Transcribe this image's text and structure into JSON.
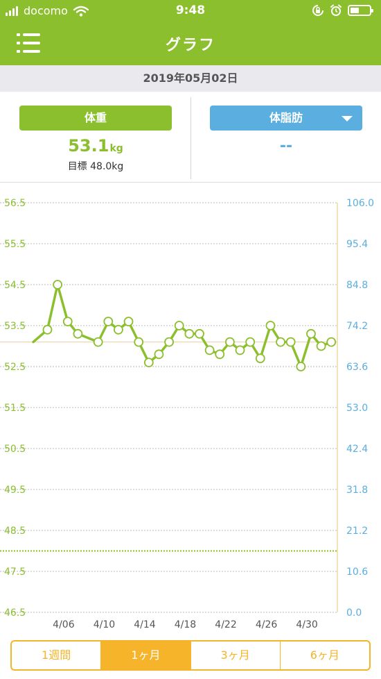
{
  "status_bar": {
    "carrier": "docomo",
    "time": "9:48"
  },
  "nav": {
    "title": "グラフ",
    "menu_icon": "list-menu-icon"
  },
  "date": "2019年05月02日",
  "weight": {
    "label": "体重",
    "value": "53.1",
    "unit": "kg",
    "goal": "目標 48.0kg"
  },
  "body_fat": {
    "label": "体脂肪",
    "value": "--"
  },
  "colors": {
    "green": "#8bbf2e",
    "blue": "#5aaee0",
    "orange": "#f5b429"
  },
  "chart_data": {
    "type": "line",
    "x_ticks": [
      "4/06",
      "4/10",
      "4/14",
      "4/18",
      "4/22",
      "4/26",
      "4/30"
    ],
    "x_tick_days": [
      6,
      10,
      14,
      18,
      22,
      26,
      30
    ],
    "x_range_days": [
      3,
      33
    ],
    "y_left": {
      "min": 46.5,
      "max": 56.5,
      "ticks": [
        "56.5",
        "55.5",
        "54.5",
        "53.5",
        "52.5",
        "51.5",
        "50.5",
        "49.5",
        "48.5",
        "47.5",
        "46.5"
      ]
    },
    "y_right": {
      "ticks": [
        "106.0",
        "95.4",
        "84.8",
        "74.2",
        "63.6",
        "53.0",
        "42.4",
        "31.8",
        "21.2",
        "10.6",
        "0.0"
      ]
    },
    "goal_line": 48.0,
    "reference_line": 53.1,
    "series": [
      {
        "values": [
          {
            "x": 3,
            "y": 53.1
          },
          {
            "x": 4.4,
            "y": 53.4
          },
          {
            "x": 5.4,
            "y": 54.5
          },
          {
            "x": 6.4,
            "y": 53.6
          },
          {
            "x": 7.4,
            "y": 53.3
          },
          {
            "x": 9.4,
            "y": 53.1
          },
          {
            "x": 10.4,
            "y": 53.6
          },
          {
            "x": 11.4,
            "y": 53.4
          },
          {
            "x": 12.4,
            "y": 53.6
          },
          {
            "x": 13.4,
            "y": 53.1
          },
          {
            "x": 14.4,
            "y": 52.6
          },
          {
            "x": 15.4,
            "y": 52.8
          },
          {
            "x": 16.4,
            "y": 53.1
          },
          {
            "x": 17.4,
            "y": 53.5
          },
          {
            "x": 18.4,
            "y": 53.3
          },
          {
            "x": 19.4,
            "y": 53.3
          },
          {
            "x": 20.4,
            "y": 52.9
          },
          {
            "x": 21.4,
            "y": 52.8
          },
          {
            "x": 22.4,
            "y": 53.1
          },
          {
            "x": 23.4,
            "y": 52.9
          },
          {
            "x": 24.4,
            "y": 53.1
          },
          {
            "x": 25.4,
            "y": 52.7
          },
          {
            "x": 26.4,
            "y": 53.5
          },
          {
            "x": 27.4,
            "y": 53.1
          },
          {
            "x": 28.4,
            "y": 53.1
          },
          {
            "x": 29.4,
            "y": 52.5
          },
          {
            "x": 30.4,
            "y": 53.3
          },
          {
            "x": 31.4,
            "y": 53.0
          },
          {
            "x": 32.4,
            "y": 53.1
          }
        ]
      }
    ]
  },
  "period_tabs": [
    "1週間",
    "1ヶ月",
    "3ヶ月",
    "6ヶ月"
  ],
  "active_tab": 1
}
